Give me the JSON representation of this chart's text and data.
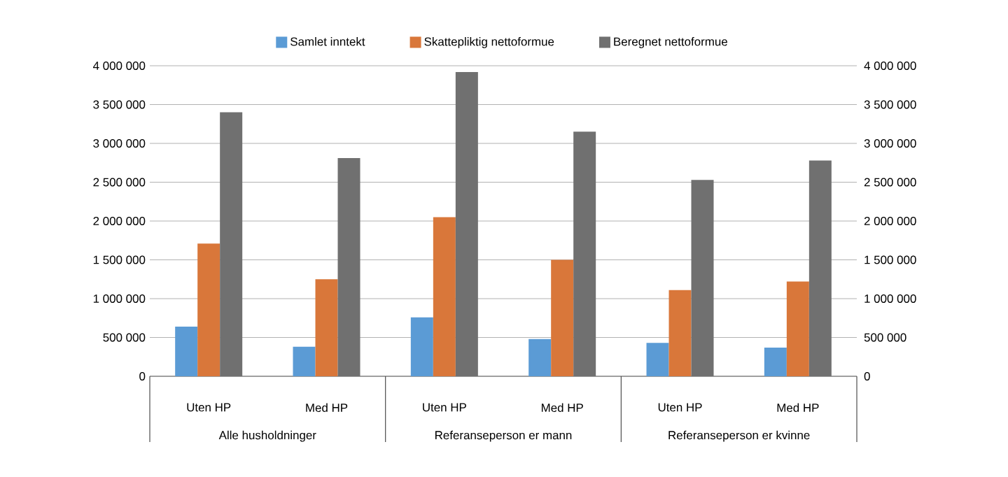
{
  "chart_data": {
    "type": "bar",
    "categories": [
      "Uten HP",
      "Med HP",
      "Uten HP",
      "Med HP",
      "Uten HP",
      "Med HP"
    ],
    "annotations": [
      "Alle husholdninger",
      "Referanseperson er mann",
      "Referanseperson er kvinne"
    ],
    "series": [
      {
        "name": "Samlet inntekt",
        "color": "#5b9bd5",
        "values": [
          640000,
          380000,
          760000,
          480000,
          430000,
          370000
        ]
      },
      {
        "name": "Skattepliktig nettoformue",
        "color": "#d9773a",
        "values": [
          1710000,
          1250000,
          2050000,
          1500000,
          1110000,
          1220000
        ]
      },
      {
        "name": "Beregnet nettoformue",
        "color": "#707070",
        "values": [
          3400000,
          2810000,
          3920000,
          3150000,
          2530000,
          2780000
        ]
      }
    ],
    "ylim": [
      0,
      4000000
    ],
    "yticks": [
      {
        "value": 0,
        "label": "0"
      },
      {
        "value": 500000,
        "label": "500 000"
      },
      {
        "value": 1000000,
        "label": "1 000 000"
      },
      {
        "value": 1500000,
        "label": "1 500 000"
      },
      {
        "value": 2000000,
        "label": "2 000 000"
      },
      {
        "value": 2500000,
        "label": "2 500 000"
      },
      {
        "value": 3000000,
        "label": "3 000 000"
      },
      {
        "value": 3500000,
        "label": "3 500 000"
      },
      {
        "value": 4000000,
        "label": "4 000 000"
      }
    ],
    "y2lim": [
      0,
      4000000
    ],
    "y2ticks": [
      {
        "value": 0,
        "label": "0"
      },
      {
        "value": 500000,
        "label": "500 000"
      },
      {
        "value": 1000000,
        "label": "1 000 000"
      },
      {
        "value": 1500000,
        "label": "1 500 000"
      },
      {
        "value": 2000000,
        "label": "2 000 000"
      },
      {
        "value": 2500000,
        "label": "2 500 000"
      },
      {
        "value": 3000000,
        "label": "3 000 000"
      },
      {
        "value": 3500000,
        "label": "3 500 000"
      },
      {
        "value": 4000000,
        "label": "4 000 000"
      }
    ],
    "grid": "y",
    "legend": "top"
  }
}
